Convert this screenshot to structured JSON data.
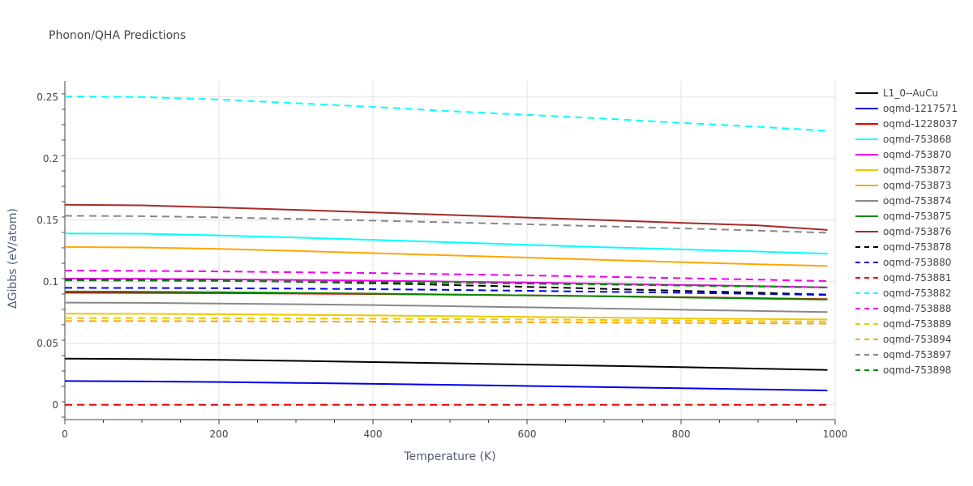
{
  "chart_data": {
    "type": "line",
    "title": "Phonon/QHA Predictions",
    "xlabel": "Temperature (K)",
    "ylabel": "ΔGibbs (eV/atom)",
    "xlim": [
      0,
      1000
    ],
    "ylim": [
      -0.012,
      0.263
    ],
    "xticks": [
      0,
      200,
      400,
      600,
      800,
      1000
    ],
    "xtick_labels": [
      "0",
      "200",
      "400",
      "600",
      "800",
      "1000"
    ],
    "yticks": [
      0,
      0.05,
      0.1,
      0.15,
      0.2,
      0.25
    ],
    "ytick_labels": [
      "0",
      "0.05",
      "0.1",
      "0.15",
      "0.2",
      "0.25"
    ],
    "grid": true,
    "legend_position": "right",
    "x": [
      0,
      100,
      200,
      300,
      400,
      500,
      600,
      700,
      800,
      900,
      990
    ],
    "series": [
      {
        "name": "L1_0--AuCu",
        "color": "#000000",
        "dash": "solid",
        "values": [
          0.0375,
          0.0372,
          0.0365,
          0.0357,
          0.0347,
          0.0337,
          0.0327,
          0.0317,
          0.0306,
          0.0294,
          0.0283
        ]
      },
      {
        "name": "oqmd-1217571",
        "color": "#0000ee",
        "dash": "solid",
        "values": [
          0.0193,
          0.019,
          0.0185,
          0.0178,
          0.017,
          0.0162,
          0.0153,
          0.0144,
          0.0135,
          0.0125,
          0.0116
        ]
      },
      {
        "name": "oqmd-1228037",
        "color": "#ee0000",
        "dash": "solid",
        "values": [
          0.091,
          0.0909,
          0.0907,
          0.0904,
          0.09,
          0.0895,
          0.0889,
          0.0882,
          0.0874,
          0.0866,
          0.0858
        ]
      },
      {
        "name": "oqmd-753868",
        "color": "#00ffff",
        "dash": "solid",
        "values": [
          0.1392,
          0.139,
          0.1376,
          0.1358,
          0.134,
          0.132,
          0.13,
          0.128,
          0.1262,
          0.1245,
          0.1227
        ]
      },
      {
        "name": "oqmd-753870",
        "color": "#ee00ee",
        "dash": "solid",
        "values": [
          0.1025,
          0.1023,
          0.1019,
          0.1014,
          0.1008,
          0.1001,
          0.0993,
          0.0984,
          0.0974,
          0.0964,
          0.0954
        ]
      },
      {
        "name": "oqmd-753872",
        "color": "#eec900",
        "dash": "solid",
        "values": [
          0.074,
          0.0739,
          0.0736,
          0.0731,
          0.0726,
          0.072,
          0.0714,
          0.0708,
          0.0702,
          0.0697,
          0.0693
        ]
      },
      {
        "name": "oqmd-753873",
        "color": "#ffa500",
        "dash": "solid",
        "values": [
          0.1282,
          0.1278,
          0.1266,
          0.125,
          0.1232,
          0.1214,
          0.1196,
          0.1177,
          0.1159,
          0.1142,
          0.1128
        ]
      },
      {
        "name": "oqmd-753874",
        "color": "#888888",
        "dash": "solid",
        "values": [
          0.083,
          0.0828,
          0.0823,
          0.0817,
          0.081,
          0.0801,
          0.0792,
          0.0782,
          0.0772,
          0.0762,
          0.0753
        ]
      },
      {
        "name": "oqmd-753875",
        "color": "#008b00",
        "dash": "solid",
        "values": [
          0.092,
          0.0918,
          0.0914,
          0.0909,
          0.0903,
          0.0896,
          0.0889,
          0.0881,
          0.0872,
          0.0863,
          0.0855
        ]
      },
      {
        "name": "oqmd-753876",
        "color": "#a52a2a",
        "dash": "solid",
        "values": [
          0.1625,
          0.162,
          0.1603,
          0.1583,
          0.1563,
          0.1542,
          0.1521,
          0.15,
          0.1478,
          0.1457,
          0.142
        ]
      },
      {
        "name": "oqmd-753878",
        "color": "#000000",
        "dash": "dash",
        "values": [
          0.1015,
          0.1013,
          0.1008,
          0.1,
          0.0988,
          0.0973,
          0.0958,
          0.0942,
          0.0926,
          0.091,
          0.0895
        ]
      },
      {
        "name": "oqmd-753880",
        "color": "#0000ee",
        "dash": "dash",
        "values": [
          0.095,
          0.0949,
          0.0947,
          0.0944,
          0.0939,
          0.0933,
          0.0926,
          0.0918,
          0.091,
          0.0901,
          0.0892
        ]
      },
      {
        "name": "oqmd-753881",
        "color": "#ee0000",
        "dash": "dash",
        "values": [
          0.0,
          0.0,
          0.0,
          0.0,
          0.0,
          0.0,
          0.0,
          0.0,
          0.0,
          0.0,
          0.0
        ]
      },
      {
        "name": "oqmd-753882",
        "color": "#00ffff",
        "dash": "dash",
        "values": [
          0.2505,
          0.25,
          0.248,
          0.245,
          0.242,
          0.2385,
          0.2355,
          0.2325,
          0.229,
          0.2258,
          0.2225
        ]
      },
      {
        "name": "oqmd-753888",
        "color": "#ee00ee",
        "dash": "dash",
        "values": [
          0.109,
          0.1088,
          0.1083,
          0.1077,
          0.107,
          0.1061,
          0.1051,
          0.104,
          0.1029,
          0.1017,
          0.1005
        ]
      },
      {
        "name": "oqmd-753889",
        "color": "#eec900",
        "dash": "dash",
        "values": [
          0.0705,
          0.0705,
          0.0703,
          0.0701,
          0.0699,
          0.0696,
          0.0693,
          0.0689,
          0.0685,
          0.068,
          0.0676
        ]
      },
      {
        "name": "oqmd-753894",
        "color": "#ffa500",
        "dash": "dash",
        "values": [
          0.068,
          0.068,
          0.0679,
          0.0677,
          0.0675,
          0.0673,
          0.0671,
          0.0668,
          0.0665,
          0.0662,
          0.0659
        ]
      },
      {
        "name": "oqmd-753897",
        "color": "#888888",
        "dash": "dash",
        "values": [
          0.1535,
          0.1532,
          0.1522,
          0.151,
          0.1496,
          0.1482,
          0.1466,
          0.145,
          0.1433,
          0.1415,
          0.1397
        ]
      },
      {
        "name": "oqmd-753898",
        "color": "#008b00",
        "dash": "dash",
        "values": [
          0.101,
          0.1009,
          0.1006,
          0.1002,
          0.0997,
          0.0991,
          0.0984,
          0.0977,
          0.0969,
          0.0961,
          0.0953
        ]
      }
    ]
  }
}
